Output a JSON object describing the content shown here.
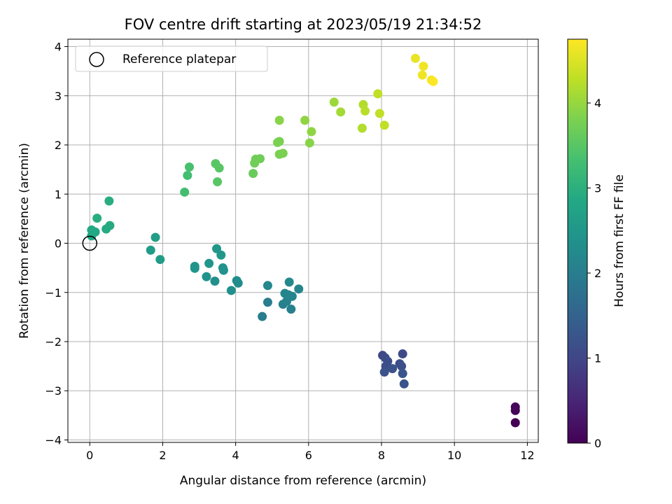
{
  "chart_data": {
    "type": "scatter",
    "title": "FOV centre drift starting at 2023/05/19 21:34:52",
    "xlabel": "Angular distance from reference (arcmin)",
    "ylabel": "Rotation from reference (arcmin)",
    "xlim": [
      -0.6,
      12.3
    ],
    "ylim": [
      -4.05,
      4.15
    ],
    "xticks": [
      0,
      2,
      4,
      6,
      8,
      10,
      12
    ],
    "yticks": [
      -4,
      -3,
      -2,
      -1,
      0,
      1,
      2,
      3,
      4
    ],
    "grid": true,
    "legend": {
      "placement": "top-left",
      "entries": [
        {
          "label": "Reference platepar",
          "marker": "open-circle"
        }
      ]
    },
    "reference_point": {
      "x": 0,
      "y": 0
    },
    "colorbar": {
      "label": "Hours from first FF file",
      "colormap": "viridis",
      "range": [
        0,
        4.75
      ],
      "ticks": [
        0,
        1,
        2,
        3,
        4
      ]
    },
    "points": [
      {
        "x": 11.67,
        "y": -3.65,
        "c": 0.0
      },
      {
        "x": 11.67,
        "y": -3.4,
        "c": 0.05
      },
      {
        "x": 11.67,
        "y": -3.33,
        "c": 0.1
      },
      {
        "x": 8.03,
        "y": -2.28,
        "c": 1.0
      },
      {
        "x": 8.58,
        "y": -2.25,
        "c": 1.05
      },
      {
        "x": 8.1,
        "y": -2.33,
        "c": 1.05
      },
      {
        "x": 8.17,
        "y": -2.4,
        "c": 1.1
      },
      {
        "x": 8.12,
        "y": -2.5,
        "c": 1.1
      },
      {
        "x": 8.5,
        "y": -2.45,
        "c": 1.15
      },
      {
        "x": 8.55,
        "y": -2.5,
        "c": 1.15
      },
      {
        "x": 8.3,
        "y": -2.55,
        "c": 1.2
      },
      {
        "x": 8.08,
        "y": -2.62,
        "c": 1.2
      },
      {
        "x": 8.58,
        "y": -2.65,
        "c": 1.25
      },
      {
        "x": 8.62,
        "y": -2.86,
        "c": 1.25
      },
      {
        "x": 4.73,
        "y": -1.49,
        "c": 2.0
      },
      {
        "x": 4.88,
        "y": -1.2,
        "c": 2.0
      },
      {
        "x": 5.3,
        "y": -1.24,
        "c": 2.05
      },
      {
        "x": 5.52,
        "y": -1.34,
        "c": 2.05
      },
      {
        "x": 5.4,
        "y": -1.18,
        "c": 2.1
      },
      {
        "x": 5.55,
        "y": -1.08,
        "c": 2.1
      },
      {
        "x": 5.35,
        "y": -1.02,
        "c": 2.15
      },
      {
        "x": 5.45,
        "y": -1.05,
        "c": 2.15
      },
      {
        "x": 5.73,
        "y": -0.93,
        "c": 2.15
      },
      {
        "x": 5.47,
        "y": -0.79,
        "c": 2.2
      },
      {
        "x": 4.88,
        "y": -0.86,
        "c": 2.2
      },
      {
        "x": 4.03,
        "y": -0.76,
        "c": 2.3
      },
      {
        "x": 4.07,
        "y": -0.81,
        "c": 2.3
      },
      {
        "x": 3.88,
        "y": -0.96,
        "c": 2.35
      },
      {
        "x": 3.43,
        "y": -0.77,
        "c": 2.35
      },
      {
        "x": 3.2,
        "y": -0.68,
        "c": 2.4
      },
      {
        "x": 3.65,
        "y": -0.5,
        "c": 2.4
      },
      {
        "x": 3.67,
        "y": -0.55,
        "c": 2.4
      },
      {
        "x": 2.88,
        "y": -0.47,
        "c": 2.45
      },
      {
        "x": 2.88,
        "y": -0.51,
        "c": 2.45
      },
      {
        "x": 3.27,
        "y": -0.41,
        "c": 2.45
      },
      {
        "x": 3.6,
        "y": -0.24,
        "c": 2.5
      },
      {
        "x": 3.48,
        "y": -0.11,
        "c": 2.5
      },
      {
        "x": 1.67,
        "y": -0.14,
        "c": 2.6
      },
      {
        "x": 1.93,
        "y": -0.33,
        "c": 2.6
      },
      {
        "x": 1.8,
        "y": 0.12,
        "c": 2.65
      },
      {
        "x": 0.05,
        "y": 0.15,
        "c": 2.8
      },
      {
        "x": 0.15,
        "y": 0.23,
        "c": 2.8
      },
      {
        "x": 0.1,
        "y": 0.21,
        "c": 2.85
      },
      {
        "x": 0.05,
        "y": 0.27,
        "c": 2.85
      },
      {
        "x": 0.45,
        "y": 0.29,
        "c": 2.9
      },
      {
        "x": 0.55,
        "y": 0.36,
        "c": 2.9
      },
      {
        "x": 0.2,
        "y": 0.51,
        "c": 2.95
      },
      {
        "x": 0.53,
        "y": 0.86,
        "c": 2.95
      },
      {
        "x": 2.6,
        "y": 1.04,
        "c": 3.3
      },
      {
        "x": 2.68,
        "y": 1.38,
        "c": 3.3
      },
      {
        "x": 2.73,
        "y": 1.55,
        "c": 3.35
      },
      {
        "x": 3.5,
        "y": 1.25,
        "c": 3.5
      },
      {
        "x": 3.45,
        "y": 1.62,
        "c": 3.5
      },
      {
        "x": 3.55,
        "y": 1.53,
        "c": 3.5
      },
      {
        "x": 4.48,
        "y": 1.42,
        "c": 3.65
      },
      {
        "x": 4.52,
        "y": 1.63,
        "c": 3.7
      },
      {
        "x": 4.55,
        "y": 1.71,
        "c": 3.7
      },
      {
        "x": 4.67,
        "y": 1.72,
        "c": 3.7
      },
      {
        "x": 5.2,
        "y": 1.81,
        "c": 3.8
      },
      {
        "x": 5.3,
        "y": 1.83,
        "c": 3.8
      },
      {
        "x": 5.15,
        "y": 2.05,
        "c": 3.8
      },
      {
        "x": 5.2,
        "y": 2.07,
        "c": 3.8
      },
      {
        "x": 5.2,
        "y": 2.5,
        "c": 3.9
      },
      {
        "x": 6.03,
        "y": 2.04,
        "c": 3.9
      },
      {
        "x": 6.08,
        "y": 2.27,
        "c": 3.95
      },
      {
        "x": 5.9,
        "y": 2.5,
        "c": 3.95
      },
      {
        "x": 6.7,
        "y": 2.87,
        "c": 4.05
      },
      {
        "x": 6.88,
        "y": 2.67,
        "c": 4.1
      },
      {
        "x": 7.47,
        "y": 2.34,
        "c": 4.2
      },
      {
        "x": 7.5,
        "y": 2.82,
        "c": 4.2
      },
      {
        "x": 7.55,
        "y": 2.69,
        "c": 4.25
      },
      {
        "x": 7.9,
        "y": 3.04,
        "c": 4.3
      },
      {
        "x": 7.95,
        "y": 2.64,
        "c": 4.3
      },
      {
        "x": 8.08,
        "y": 2.4,
        "c": 4.3
      },
      {
        "x": 8.93,
        "y": 3.76,
        "c": 4.6
      },
      {
        "x": 9.15,
        "y": 3.6,
        "c": 4.65
      },
      {
        "x": 9.12,
        "y": 3.42,
        "c": 4.65
      },
      {
        "x": 9.37,
        "y": 3.32,
        "c": 4.7
      },
      {
        "x": 9.42,
        "y": 3.29,
        "c": 4.75
      }
    ]
  }
}
